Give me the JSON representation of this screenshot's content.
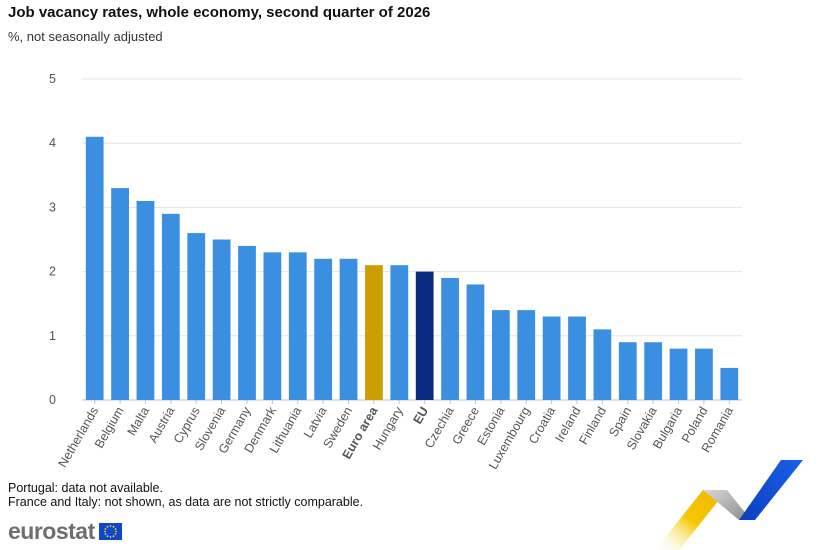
{
  "title": "Job vacancy rates, whole economy, second quarter of 2026",
  "subtitle": "%, not seasonally adjusted",
  "notes": [
    "Portugal: data not available.",
    "France and Italy: not shown, as data are not strictly comparable."
  ],
  "logo_text": "eurostat",
  "colors": {
    "default": "#3b8fe0",
    "euro_area": "#cc9f00",
    "eu": "#0b2b80",
    "grid": "#e3e3ec",
    "axis_text": "#555555"
  },
  "chart_data": {
    "type": "bar",
    "categories": [
      "Netherlands",
      "Belgium",
      "Malta",
      "Austria",
      "Cyprus",
      "Slovenia",
      "Germany",
      "Denmark",
      "Lithuania",
      "Latvia",
      "Sweden",
      "Euro area",
      "Hungary",
      "EU",
      "Czechia",
      "Greece",
      "Estonia",
      "Luxembourg",
      "Croatia",
      "Ireland",
      "Finland",
      "Spain",
      "Slovakia",
      "Bulgaria",
      "Poland",
      "Romania"
    ],
    "values": [
      4.1,
      3.3,
      3.1,
      2.9,
      2.6,
      2.5,
      2.4,
      2.3,
      2.3,
      2.2,
      2.2,
      2.1,
      2.1,
      2.0,
      1.9,
      1.8,
      1.4,
      1.4,
      1.3,
      1.3,
      1.1,
      0.9,
      0.9,
      0.8,
      0.8,
      0.5
    ],
    "highlight": {
      "Euro area": "euro_area",
      "EU": "eu"
    },
    "bold_categories": [
      "Euro area",
      "EU"
    ],
    "title": "Job vacancy rates, whole economy, second quarter of 2026",
    "subtitle": "%, not seasonally adjusted",
    "xlabel": "",
    "ylabel": "",
    "ylim": [
      0,
      5
    ],
    "yticks": [
      0,
      1,
      2,
      3,
      4,
      5
    ],
    "grid": true,
    "legend": "none"
  }
}
